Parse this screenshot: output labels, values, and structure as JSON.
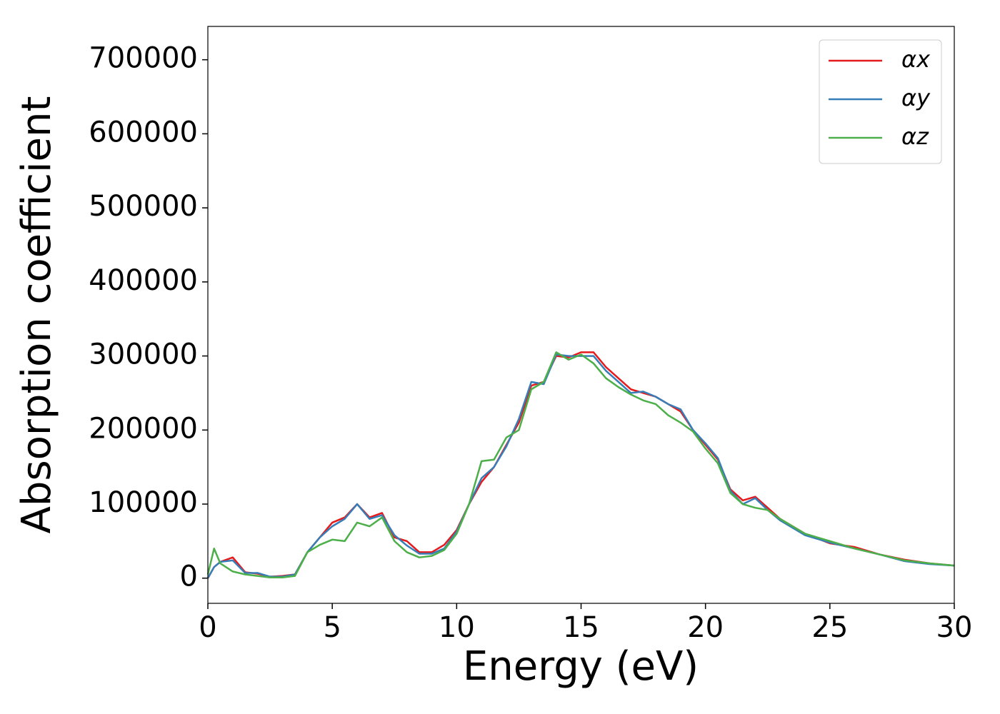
{
  "chart_data": {
    "type": "line",
    "xlabel": "Energy (eV)",
    "ylabel": "Absorption coefficient",
    "x": [
      0,
      0.25,
      0.5,
      1,
      1.5,
      2,
      2.5,
      3,
      3.5,
      4,
      4.5,
      5,
      5.5,
      6,
      6.5,
      7,
      7.5,
      8,
      8.5,
      9,
      9.5,
      10,
      10.5,
      11,
      11.5,
      12,
      12.5,
      13,
      13.5,
      14,
      14.5,
      15,
      15.5,
      16,
      16.5,
      17,
      17.5,
      18,
      18.5,
      19,
      19.5,
      20,
      20.5,
      21,
      21.5,
      22,
      22.5,
      23,
      24,
      25,
      26,
      27,
      28,
      29,
      30
    ],
    "series": [
      {
        "name": "αx",
        "color": "#e41a1c",
        "values": [
          0,
          15000,
          22000,
          28000,
          8000,
          6000,
          2000,
          3000,
          5000,
          35000,
          55000,
          75000,
          82000,
          100000,
          82000,
          88000,
          55000,
          50000,
          35000,
          35000,
          45000,
          65000,
          100000,
          130000,
          150000,
          180000,
          210000,
          260000,
          265000,
          300000,
          298000,
          305000,
          305000,
          285000,
          270000,
          255000,
          250000,
          245000,
          235000,
          225000,
          200000,
          180000,
          160000,
          120000,
          105000,
          110000,
          95000,
          80000,
          60000,
          47000,
          42000,
          32000,
          25000,
          20000,
          17000
        ]
      },
      {
        "name": "αy",
        "color": "#377eb8",
        "values": [
          0,
          15000,
          22000,
          24000,
          7000,
          7000,
          2000,
          2000,
          5000,
          35000,
          55000,
          70000,
          80000,
          100000,
          80000,
          85000,
          58000,
          44000,
          33000,
          33000,
          40000,
          63000,
          100000,
          135000,
          150000,
          178000,
          215000,
          265000,
          262000,
          302000,
          300000,
          300000,
          300000,
          280000,
          265000,
          250000,
          252000,
          245000,
          235000,
          228000,
          200000,
          182000,
          162000,
          118000,
          100000,
          108000,
          92000,
          78000,
          58000,
          48000,
          40000,
          32000,
          23000,
          19000,
          17000
        ]
      },
      {
        "name": "αz",
        "color": "#4daf4a",
        "values": [
          5000,
          40000,
          20000,
          9000,
          5000,
          3000,
          1000,
          1000,
          3000,
          35000,
          45000,
          52000,
          50000,
          75000,
          70000,
          82000,
          50000,
          35000,
          28000,
          30000,
          38000,
          60000,
          100000,
          158000,
          160000,
          190000,
          200000,
          255000,
          265000,
          305000,
          295000,
          302000,
          290000,
          270000,
          258000,
          248000,
          240000,
          235000,
          220000,
          210000,
          198000,
          175000,
          155000,
          115000,
          100000,
          95000,
          92000,
          80000,
          60000,
          50000,
          40000,
          32000,
          24000,
          20000,
          17000
        ]
      }
    ],
    "xlim": [
      0,
      30
    ],
    "xticks": [
      0,
      5,
      10,
      15,
      20,
      25,
      30
    ],
    "ylim": [
      -34000,
      745000
    ],
    "yticks": [
      0,
      100000,
      200000,
      300000,
      400000,
      500000,
      600000,
      700000
    ],
    "legend": "upper right"
  }
}
